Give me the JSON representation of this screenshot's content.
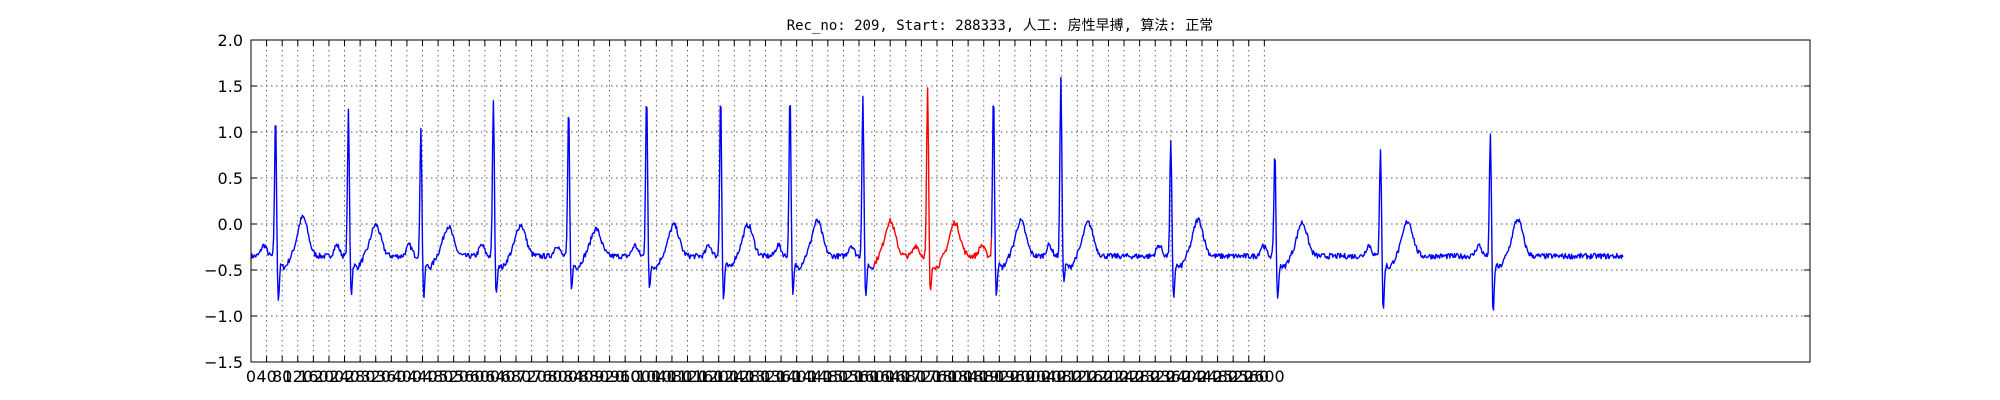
{
  "chart_data": {
    "type": "line",
    "title": "Rec_no: 209, Start: 288333, 人工: 房性早搏, 算法: 正常",
    "xlabel": "",
    "ylabel": "",
    "xlim": [
      0,
      4000
    ],
    "ylim": [
      -1.5,
      2.0
    ],
    "grid": true,
    "x_ticks": [
      0,
      40,
      80,
      120,
      160,
      200,
      240,
      280,
      320,
      360,
      400,
      440,
      480,
      520,
      560,
      600,
      640,
      680,
      720,
      760,
      800,
      840,
      880,
      920,
      960,
      1000,
      1040,
      1080,
      1120,
      1160,
      1200,
      1240,
      1280,
      1320,
      1360,
      1400,
      1440,
      1480,
      1520,
      1560,
      1600,
      1640,
      1680,
      1720,
      1760,
      1800,
      1840,
      1880,
      1920,
      1960,
      2000,
      2040,
      2080,
      2120,
      2160,
      2200,
      2240,
      2280,
      2320,
      2360,
      2400,
      2440,
      2480,
      2520,
      2560,
      2600
    ],
    "y_ticks": [
      "2.0",
      "1.5",
      "1.0",
      "0.5",
      "0.0",
      "−0.5",
      "−1.0",
      "−1.5"
    ],
    "signal_end": 3520,
    "baseline": -0.35,
    "highlight": {
      "from": 1600,
      "to": 1900
    },
    "colors": {
      "normal": "#0000ff",
      "highlight": "#ff0000"
    },
    "beats": [
      {
        "x": 63,
        "r": 1.22,
        "s": -0.85,
        "t": 0.15
      },
      {
        "x": 250,
        "r": 1.24,
        "s": -0.78,
        "t": 0.05
      },
      {
        "x": 436,
        "r": 1.08,
        "s": -0.82,
        "t": 0.03
      },
      {
        "x": 622,
        "r": 1.35,
        "s": -0.8,
        "t": 0.05
      },
      {
        "x": 815,
        "r": 1.3,
        "s": -0.74,
        "t": 0.0
      },
      {
        "x": 1015,
        "r": 1.46,
        "s": -0.72,
        "t": 0.05
      },
      {
        "x": 1205,
        "r": 1.47,
        "s": -0.85,
        "t": 0.05
      },
      {
        "x": 1383,
        "r": 1.46,
        "s": -0.81,
        "t": 0.1
      },
      {
        "x": 1570,
        "r": 1.4,
        "s": -0.82,
        "t": 0.1
      },
      {
        "x": 1736,
        "r": 1.49,
        "s": -0.77,
        "t": 0.08
      },
      {
        "x": 1905,
        "r": 1.45,
        "s": -0.78,
        "t": 0.1
      },
      {
        "x": 2078,
        "r": 1.58,
        "s": -0.63,
        "t": 0.08
      },
      {
        "x": 2360,
        "r": 0.92,
        "s": -0.83,
        "t": 0.12
      },
      {
        "x": 2627,
        "r": 0.82,
        "s": -0.85,
        "t": 0.08
      },
      {
        "x": 2898,
        "r": 0.85,
        "s": -0.97,
        "t": 0.1
      },
      {
        "x": 3180,
        "r": 0.98,
        "s": -1.01,
        "t": 0.12
      }
    ]
  }
}
